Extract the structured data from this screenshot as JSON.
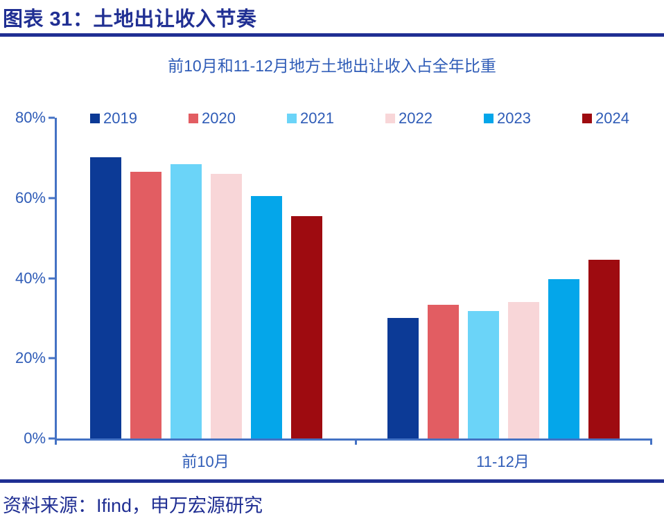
{
  "header": {
    "title": "图表 31：土地出让收入节奏"
  },
  "chart_data": {
    "type": "bar",
    "title": "前10月和11-12月地方土地出让收入占全年比重",
    "categories": [
      "前10月",
      "11-12月"
    ],
    "series": [
      {
        "name": "2019",
        "color": "#0C3A96",
        "values": [
          70.2,
          30.0
        ]
      },
      {
        "name": "2020",
        "color": "#E25D62",
        "values": [
          66.6,
          33.4
        ]
      },
      {
        "name": "2021",
        "color": "#6BD4F8",
        "values": [
          68.4,
          31.8
        ]
      },
      {
        "name": "2022",
        "color": "#F8D6D8",
        "values": [
          66.0,
          34.0
        ]
      },
      {
        "name": "2023",
        "color": "#04A6EA",
        "values": [
          60.4,
          39.8
        ]
      },
      {
        "name": "2024",
        "color": "#9E0B10",
        "values": [
          55.4,
          44.6
        ]
      }
    ],
    "xlabel": "",
    "ylabel": "",
    "ylim": [
      0,
      80
    ],
    "ytick_labels": [
      "80%",
      "60%",
      "40%",
      "20%",
      "0%"
    ],
    "ytick_values": [
      80,
      60,
      40,
      20,
      0
    ],
    "legend_position": "top",
    "grid": false
  },
  "footer": {
    "source": "资料来源：Ifind，申万宏源研究"
  },
  "colors": {
    "navy": "#202F93",
    "text_blue": "#2F5CB7",
    "axis_blue": "#4472C4"
  }
}
